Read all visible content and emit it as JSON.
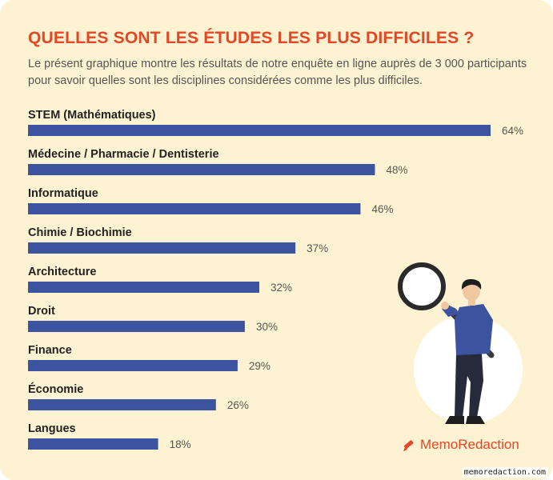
{
  "title": "QUELLES SONT LES ÉTUDES LES PLUS DIFFICILES ?",
  "subtitle": "Le présent graphique montre les résultats de notre enquête en ligne auprès de 3 000 participants pour savoir quelles sont les disciplines considérées comme les plus difficiles.",
  "brand": "MemoRedaction",
  "watermark": "memoredaction.com",
  "colors": {
    "title": "#e34726",
    "bar": "#3c54a0",
    "background": "#fdf3d2"
  },
  "chart_data": {
    "type": "bar",
    "orientation": "horizontal",
    "categories": [
      "STEM (Mathématiques)",
      "Médecine / Pharmacie / Dentisterie",
      "Informatique",
      "Chimie / Biochimie",
      "Architecture",
      "Droit",
      "Finance",
      "Économie",
      "Langues"
    ],
    "values": [
      64,
      48,
      46,
      37,
      32,
      30,
      29,
      26,
      18
    ],
    "value_labels": [
      "64%",
      "48%",
      "46%",
      "37%",
      "32%",
      "30%",
      "29%",
      "26%",
      "18%"
    ],
    "xlim": [
      0,
      64
    ],
    "grid": false,
    "legend": "none"
  }
}
